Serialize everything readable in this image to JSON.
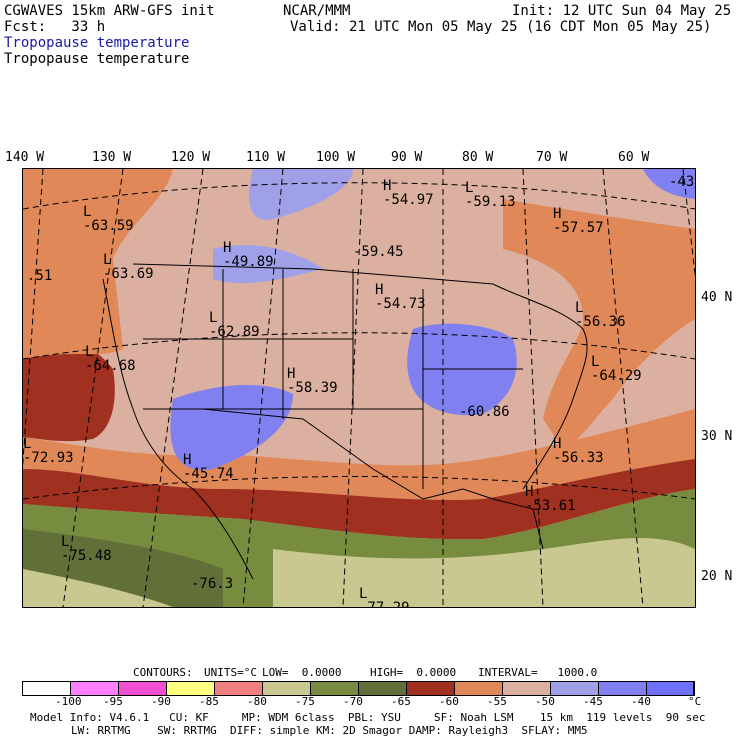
{
  "header": {
    "model": "CGWAVES 15km ARW-GFS init",
    "center": "NCAR/MMM",
    "init": "Init: 12 UTC Sun 04 May 25",
    "fcst": "Fcst:   33 h",
    "valid": "Valid: 21 UTC Mon 05 May 25 (16 CDT Mon 05 May 25)",
    "field_blue": "Tropopause temperature",
    "field_black": "Tropopause temperature"
  },
  "longitudes": [
    "140 W",
    "130 W",
    "120 W",
    "110 W",
    "100 W",
    "90 W",
    "80 W",
    "70 W",
    "60 W"
  ],
  "latitudes": [
    "40 N",
    "30 N",
    "20 N"
  ],
  "centers": [
    {
      "type": "H",
      "value": "-54.97"
    },
    {
      "type": "L",
      "value": "-59.13"
    },
    {
      "type": "H",
      "value": "-57.57"
    },
    {
      "type": "",
      "value": "-43"
    },
    {
      "type": "L",
      "value": "-63.59"
    },
    {
      "type": "L",
      "value": "-63.69"
    },
    {
      "type": "H",
      "value": "-49.89"
    },
    {
      "type": "",
      "value": "-59.45"
    },
    {
      "type": "",
      "value": ".51"
    },
    {
      "type": "H",
      "value": "-54.73"
    },
    {
      "type": "L",
      "value": "-56.36"
    },
    {
      "type": "L",
      "value": "-62.89"
    },
    {
      "type": "L",
      "value": "-64.68"
    },
    {
      "type": "L",
      "value": "-64.29"
    },
    {
      "type": "H",
      "value": "-58.39"
    },
    {
      "type": "",
      "value": "-60.86"
    },
    {
      "type": "L",
      "value": "-72.93"
    },
    {
      "type": "H",
      "value": "-56.33"
    },
    {
      "type": "H",
      "value": "-45.74"
    },
    {
      "type": "H",
      "value": "-53.61"
    },
    {
      "type": "L",
      "value": "-75.48"
    },
    {
      "type": "",
      "value": "-76.3"
    },
    {
      "type": "L",
      "value": "-77.29"
    }
  ],
  "contour_info": {
    "contours": "CONTOURS:",
    "units": "UNITS=°C",
    "low": "LOW=  0.0000",
    "high": "HIGH=  0.0000",
    "interval": "INTERVAL=   1000.0"
  },
  "legend": {
    "colors": [
      "#ffffff",
      "#ff80ff",
      "#f050d0",
      "#ffff80",
      "#f08080",
      "#c8c890",
      "#788c40",
      "#607038",
      "#a03020",
      "#e08858",
      "#dcb0a0",
      "#a0a0e8",
      "#8080f0",
      "#7070ff"
    ],
    "ticks": [
      "-100",
      "-95",
      "-90",
      "-85",
      "-80",
      "-75",
      "-70",
      "-65",
      "-60",
      "-55",
      "-50",
      "-45",
      "-40",
      "°C"
    ]
  },
  "footer": {
    "line1": "Model Info: V4.6.1   CU: KF     MP: WDM 6class  PBL: YSU     SF: Noah LSM    15 km  119 levels  90 sec",
    "line2": "LW: RRTMG    SW: RRTMG  DIFF: simple KM: 2D Smagor DAMP: Rayleigh3  SFLAY: MM5"
  }
}
